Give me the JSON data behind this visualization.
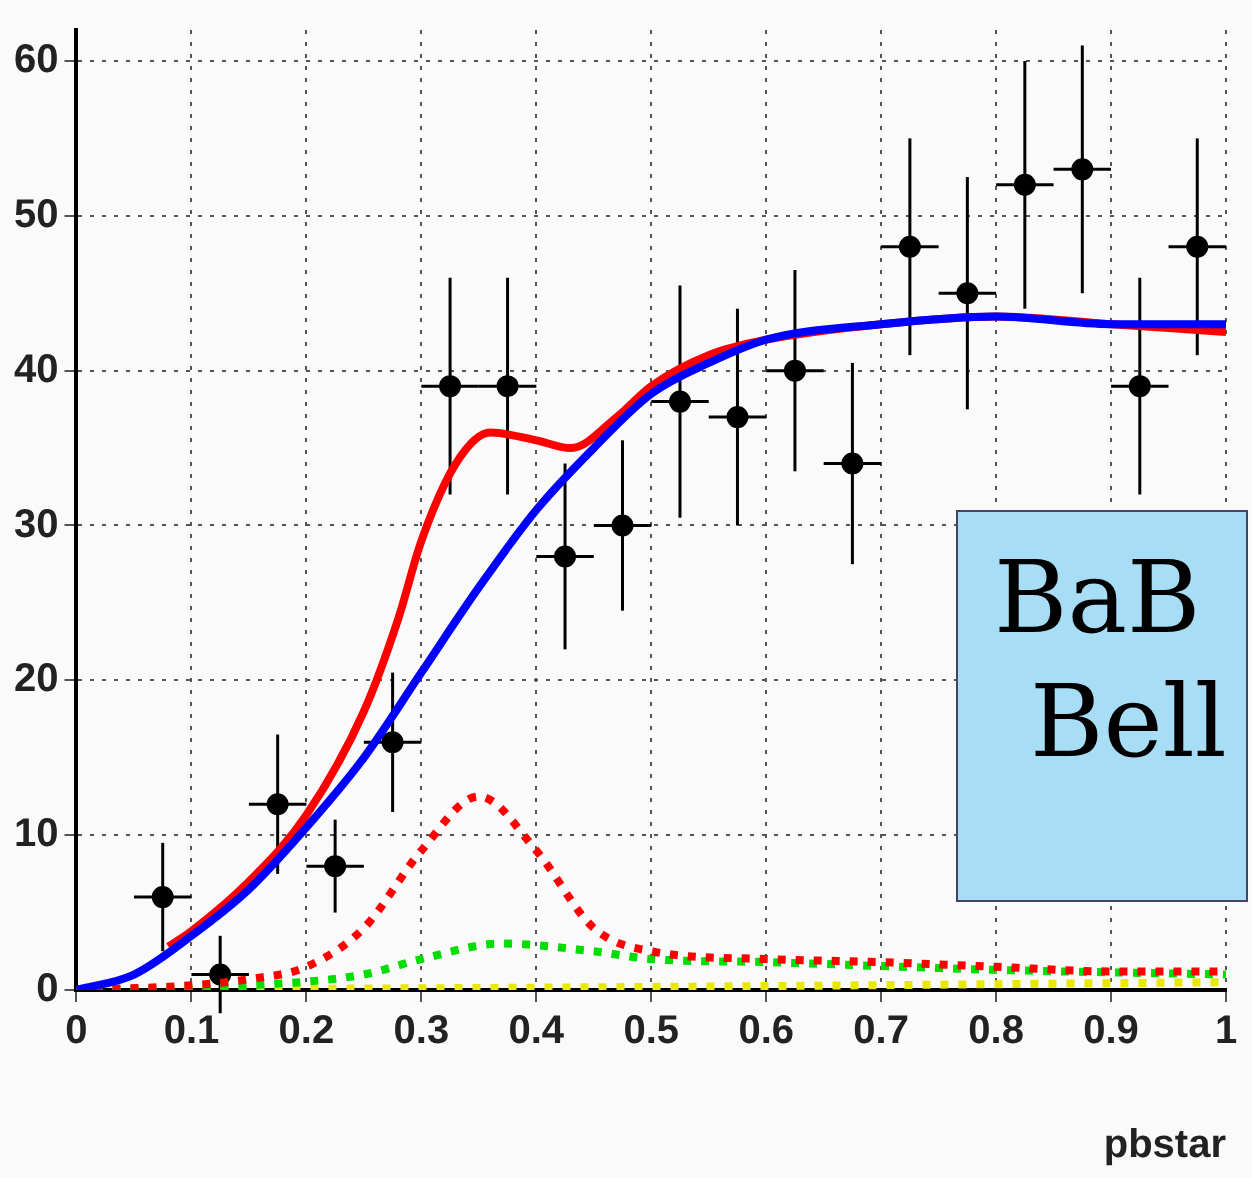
{
  "chart_data": {
    "type": "scatter",
    "xlabel": "pbstar",
    "xlim": [
      0,
      1
    ],
    "ylim": [
      0,
      62
    ],
    "xticks": [
      0,
      0.1,
      0.2,
      0.3,
      0.4,
      0.5,
      0.6,
      0.7,
      0.8,
      0.9,
      1
    ],
    "yticks": [
      0,
      10,
      20,
      30,
      40,
      50,
      60
    ],
    "grid": true,
    "legend": false,
    "annotations": [
      "BaB",
      "Bell"
    ],
    "series": [
      {
        "type": "line",
        "color": "#ff0000",
        "line_style": "solid",
        "marker": "none",
        "x": [
          0.08,
          0.1,
          0.15,
          0.2,
          0.25,
          0.28,
          0.3,
          0.33,
          0.36,
          0.4,
          0.43,
          0.47,
          0.5,
          0.55,
          0.6,
          0.7,
          0.8,
          0.9,
          1
        ],
        "values": [
          2.8,
          3.8,
          7,
          11.3,
          18,
          24,
          29,
          34,
          36,
          35.5,
          35,
          37,
          39,
          41,
          42,
          43,
          43.5,
          43,
          42.5
        ]
      },
      {
        "type": "line",
        "color": "#0000ff",
        "line_style": "solid",
        "marker": "none",
        "x": [
          0,
          0.05,
          0.1,
          0.15,
          0.2,
          0.25,
          0.3,
          0.35,
          0.4,
          0.45,
          0.5,
          0.55,
          0.6,
          0.7,
          0.8,
          0.9,
          1
        ],
        "values": [
          0,
          1,
          3.5,
          6.5,
          10.5,
          15,
          20.5,
          26,
          31,
          35,
          38.5,
          40.5,
          42,
          43,
          43.5,
          43,
          43
        ]
      },
      {
        "type": "line",
        "color": "#ff0000",
        "line_style": "dotted",
        "marker": "none",
        "x": [
          0,
          0.1,
          0.15,
          0.2,
          0.25,
          0.3,
          0.35,
          0.4,
          0.45,
          0.5,
          0.6,
          0.7,
          0.8,
          0.9,
          1
        ],
        "values": [
          0,
          0.3,
          0.7,
          1.5,
          4,
          9,
          12.5,
          9,
          4,
          2.5,
          2,
          1.8,
          1.5,
          1.2,
          1.2
        ]
      },
      {
        "type": "line",
        "color": "#00dd00",
        "line_style": "dotted",
        "marker": "none",
        "x": [
          0,
          0.15,
          0.25,
          0.3,
          0.37,
          0.45,
          0.5,
          0.6,
          0.8,
          1
        ],
        "values": [
          0,
          0.3,
          1,
          2,
          3,
          2.5,
          2,
          1.8,
          1.3,
          1
        ]
      },
      {
        "type": "line",
        "color": "#e8e800",
        "line_style": "dotted",
        "marker": "none",
        "x": [
          0,
          0.5,
          1
        ],
        "values": [
          0,
          0.2,
          0.5
        ]
      },
      {
        "color": "#000000",
        "marker": "circle",
        "x": [
          0.075,
          0.125,
          0.175,
          0.225,
          0.275,
          0.325,
          0.375,
          0.425,
          0.475,
          0.525,
          0.575,
          0.625,
          0.675,
          0.725,
          0.775,
          0.825,
          0.875,
          0.925,
          0.975
        ],
        "values": [
          6,
          1,
          12,
          8,
          16,
          39,
          39,
          28,
          30,
          38,
          37,
          40,
          34,
          48,
          45,
          52,
          53,
          39,
          48
        ],
        "errors": [
          3.5,
          2.5,
          4.5,
          3,
          4.5,
          7,
          7,
          6,
          5.5,
          7.5,
          7,
          6.5,
          6.5,
          7,
          7.5,
          8,
          8,
          7,
          7
        ],
        "xerrors": [
          0.025,
          0.025,
          0.025,
          0.025,
          0.025,
          0.025,
          0.025,
          0.025,
          0.025,
          0.025,
          0.025,
          0.025,
          0.025,
          0.025,
          0.025,
          0.025,
          0.025,
          0.025,
          0.025
        ]
      }
    ]
  }
}
